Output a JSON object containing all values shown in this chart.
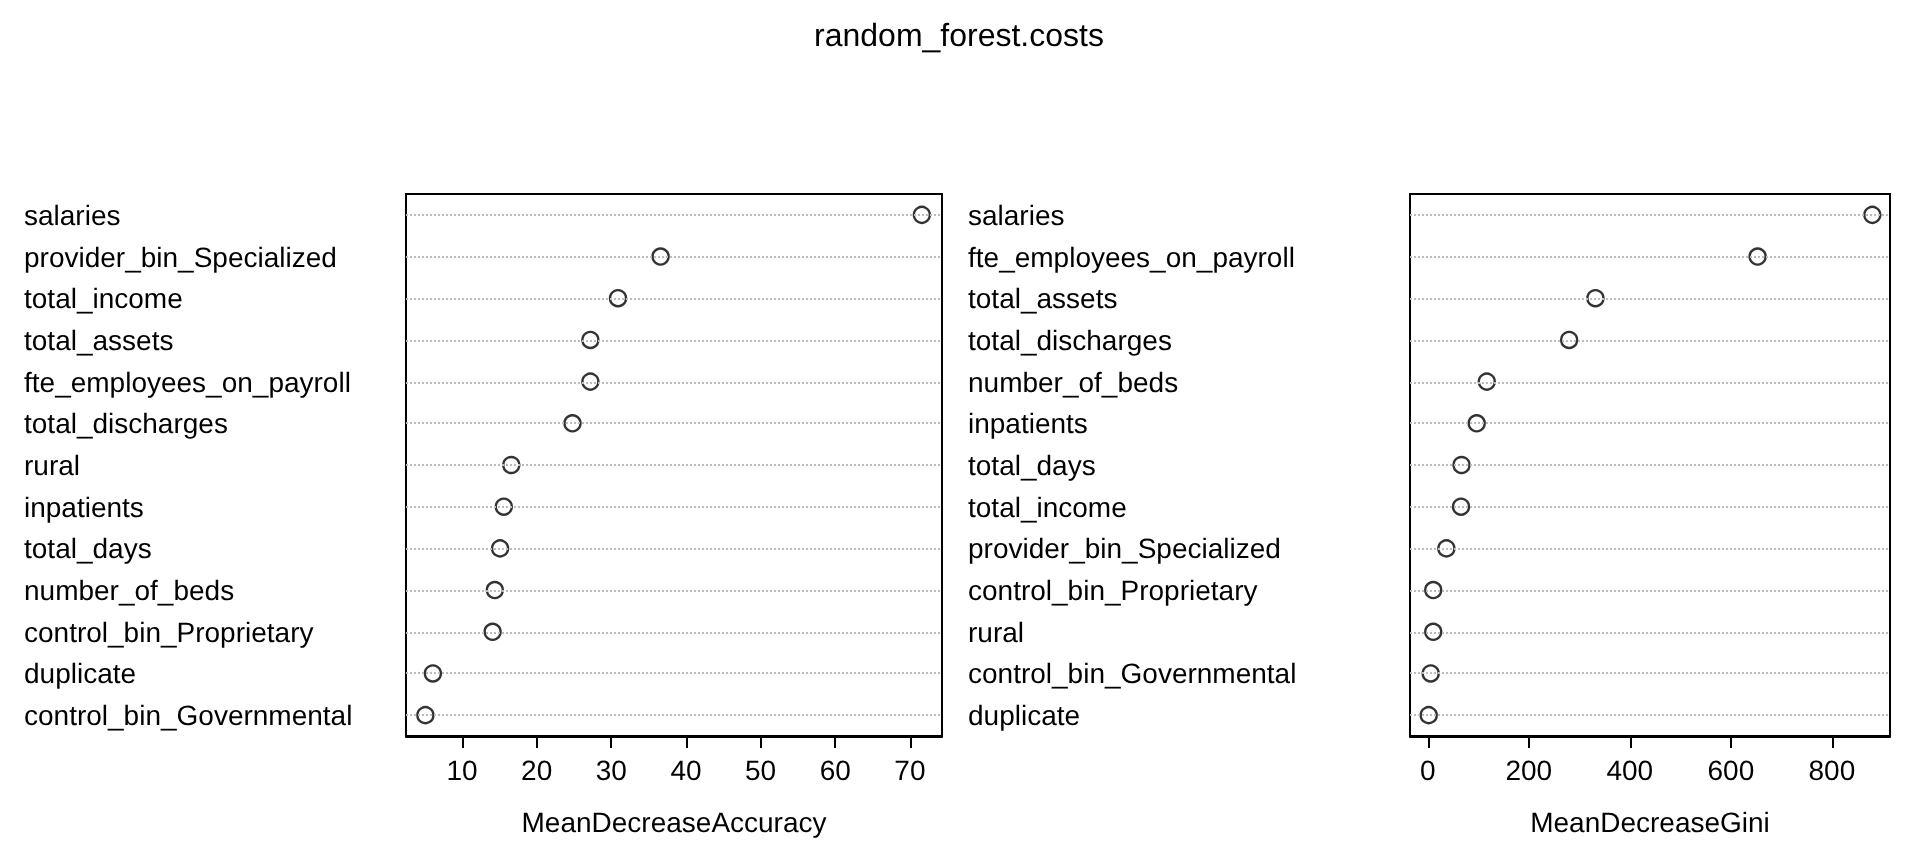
{
  "chart_data": [
    {
      "type": "scatter",
      "title": "random_forest.costs",
      "xlabel": "MeanDecreaseAccuracy",
      "categories": [
        "salaries",
        "provider_bin_Specialized",
        "total_income",
        "total_assets",
        "fte_employees_on_payroll",
        "total_discharges",
        "rural",
        "inpatients",
        "total_days",
        "number_of_beds",
        "control_bin_Proprietary",
        "duplicate",
        "control_bin_Governmental"
      ],
      "values": [
        71.6,
        36.6,
        30.9,
        27.2,
        27.2,
        24.8,
        16.6,
        15.6,
        15.1,
        14.4,
        14.1,
        6.1,
        5.1
      ],
      "color": "#000000",
      "marker": "circle",
      "orientation": "horizontal",
      "xlim": [
        2.5,
        74.3
      ],
      "xticks": [
        10,
        20,
        30,
        40,
        50,
        60,
        70
      ],
      "grid": "y"
    },
    {
      "type": "scatter",
      "xlabel": "MeanDecreaseGini",
      "categories": [
        "salaries",
        "fte_employees_on_payroll",
        "total_assets",
        "total_discharges",
        "number_of_beds",
        "inpatients",
        "total_days",
        "total_income",
        "provider_bin_Specialized",
        "control_bin_Proprietary",
        "rural",
        "control_bin_Governmental",
        "duplicate"
      ],
      "values": [
        880,
        653,
        332,
        280,
        117,
        97,
        67,
        66,
        37,
        11,
        11,
        6,
        2
      ],
      "color": "#000000",
      "marker": "circle",
      "orientation": "horizontal",
      "xlim": [
        -35,
        915
      ],
      "xticks": [
        0,
        200,
        400,
        600,
        800
      ],
      "grid": "y"
    }
  ]
}
